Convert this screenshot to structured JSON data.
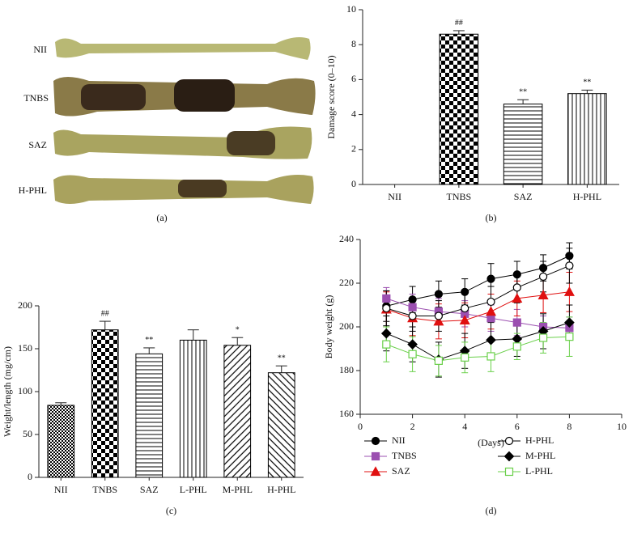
{
  "photo_panel": {
    "labels": [
      "NII",
      "TNBS",
      "SAZ",
      "H-PHL"
    ],
    "caption": "(a)"
  },
  "chart_data": [
    {
      "type": "bar",
      "caption": "(b)",
      "ylabel": "Damage score (0–10)",
      "categories": [
        "NII",
        "TNBS",
        "SAZ",
        "H-PHL"
      ],
      "values": [
        0,
        8.6,
        4.6,
        5.2
      ],
      "errors": [
        0,
        0.2,
        0.25,
        0.2
      ],
      "annotations": [
        null,
        "##",
        "**",
        "**"
      ],
      "patterns": [
        "none",
        "checker",
        "hlines",
        "vlines"
      ],
      "ylim": [
        0,
        10
      ],
      "yticks": [
        0,
        2,
        4,
        6,
        8,
        10
      ]
    },
    {
      "type": "bar",
      "caption": "(c)",
      "ylabel": "Weight/length (mg/cm)",
      "categories": [
        "NII",
        "TNBS",
        "SAZ",
        "L-PHL",
        "M-PHL",
        "H-PHL"
      ],
      "values": [
        84,
        172,
        144,
        160,
        154,
        122
      ],
      "errors": [
        3,
        10,
        7,
        12,
        9,
        8
      ],
      "annotations": [
        null,
        "##",
        "**",
        null,
        "*",
        "**"
      ],
      "patterns": [
        "checker-small",
        "checker",
        "hlines",
        "vlines",
        "diag",
        "diag-rev"
      ],
      "ylim": [
        0,
        200
      ],
      "yticks": [
        0,
        50,
        100,
        150,
        200
      ]
    },
    {
      "type": "line",
      "caption": "(d)",
      "xlabel": "(Days)",
      "ylabel": "Body weight (g)",
      "x": [
        1,
        2,
        3,
        4,
        5,
        6,
        7,
        8
      ],
      "xlim": [
        0,
        10
      ],
      "xticks": [
        0,
        2,
        4,
        6,
        8,
        10
      ],
      "ylim": [
        160,
        240
      ],
      "yticks": [
        160,
        180,
        200,
        220,
        240
      ],
      "series": [
        {
          "name": "NII",
          "color": "#000000",
          "marker": "circle",
          "values": [
            209.5,
            212.5,
            215,
            216,
            222,
            224,
            227,
            232.5
          ],
          "errors": [
            7,
            6,
            6,
            6,
            7,
            6,
            6,
            6
          ]
        },
        {
          "name": "TNBS",
          "color": "#9b4fb0",
          "marker": "square",
          "values": [
            213,
            209,
            207,
            206,
            204,
            202,
            200,
            199.5
          ],
          "errors": [
            5,
            6,
            6,
            6,
            6,
            6,
            5,
            5
          ]
        },
        {
          "name": "SAZ",
          "color": "#e01010",
          "marker": "triangle",
          "values": [
            208,
            204,
            202.5,
            203,
            207,
            213,
            214.5,
            216
          ],
          "errors": [
            8,
            8,
            8,
            8,
            8,
            8,
            8,
            9
          ]
        },
        {
          "name": "H-PHL",
          "color": "#000000",
          "marker": "circle-open",
          "values": [
            208.5,
            205,
            205,
            208.5,
            211.5,
            218,
            223,
            228
          ],
          "errors": [
            8,
            7,
            7,
            7,
            7,
            7,
            7,
            8
          ]
        },
        {
          "name": "M-PHL",
          "color": "#000000",
          "marker": "diamond",
          "values": [
            197,
            192,
            185,
            189,
            194,
            194.5,
            198,
            202
          ],
          "errors": [
            8,
            8,
            8,
            8,
            8,
            8,
            8,
            8
          ]
        },
        {
          "name": "L-PHL",
          "color": "#6ad04a",
          "marker": "square-open",
          "values": [
            192,
            187.5,
            184.5,
            186,
            186.5,
            191,
            195,
            195.5
          ],
          "errors": [
            8,
            8,
            7,
            7,
            7,
            6,
            7,
            9
          ]
        }
      ]
    }
  ]
}
